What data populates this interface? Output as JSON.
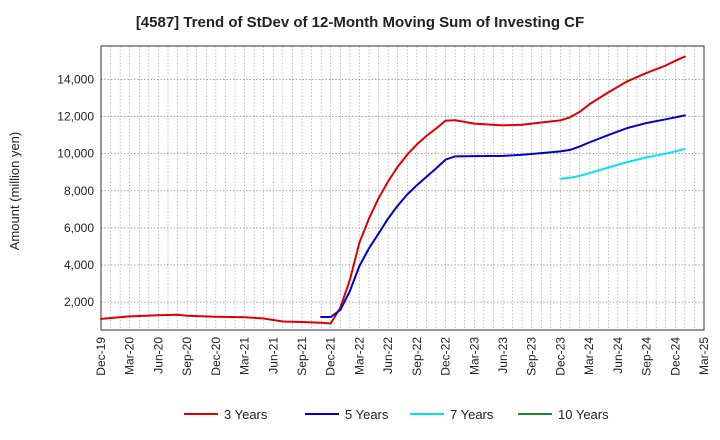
{
  "chart_data": {
    "type": "line",
    "title": "[4587]  Trend of StDev of 12-Month Moving Sum of Investing CF",
    "ylabel": "Amount (million yen)",
    "xlabel": "",
    "ylim": [
      500,
      15800
    ],
    "yticks": [
      2000,
      4000,
      6000,
      8000,
      10000,
      12000,
      14000
    ],
    "ytick_labels": [
      "2,000",
      "4,000",
      "6,000",
      "8,000",
      "10,000",
      "12,000",
      "14,000"
    ],
    "x_start": "Dec-19",
    "xtick_labels": [
      "Dec-19",
      "Mar-20",
      "Jun-20",
      "Sep-20",
      "Dec-20",
      "Mar-21",
      "Jun-21",
      "Sep-21",
      "Dec-21",
      "Mar-22",
      "Jun-22",
      "Sep-22",
      "Dec-22",
      "Mar-23",
      "Jun-23",
      "Sep-23",
      "Dec-23",
      "Mar-24",
      "Jun-24",
      "Sep-24",
      "Dec-24",
      "Mar-25"
    ],
    "grid": true,
    "legend_position": "bottom",
    "series": [
      {
        "name": "3 Years",
        "color": "#dd0000",
        "points": [
          [
            "Dec-19",
            1100
          ],
          [
            "Mar-20",
            1230
          ],
          [
            "Jun-20",
            1300
          ],
          [
            "Aug-20",
            1320
          ],
          [
            "Sep-20",
            1270
          ],
          [
            "Dec-20",
            1210
          ],
          [
            "Mar-21",
            1190
          ],
          [
            "May-21",
            1120
          ],
          [
            "Jul-21",
            960
          ],
          [
            "Sep-21",
            930
          ],
          [
            "Nov-21",
            890
          ],
          [
            "Dec-21",
            850
          ],
          [
            "Jan-22",
            1700
          ],
          [
            "Feb-22",
            3200
          ],
          [
            "Mar-22",
            5200
          ],
          [
            "Apr-22",
            6500
          ],
          [
            "May-22",
            7600
          ],
          [
            "Jun-22",
            8500
          ],
          [
            "Jul-22",
            9300
          ],
          [
            "Aug-22",
            9950
          ],
          [
            "Sep-22",
            10500
          ],
          [
            "Oct-22",
            10950
          ],
          [
            "Nov-22",
            11350
          ],
          [
            "Dec-22",
            11780
          ],
          [
            "Jan-23",
            11800
          ],
          [
            "Mar-23",
            11620
          ],
          [
            "Jun-23",
            11520
          ],
          [
            "Aug-23",
            11560
          ],
          [
            "Oct-23",
            11680
          ],
          [
            "Dec-23",
            11790
          ],
          [
            "Jan-24",
            11960
          ],
          [
            "Feb-24",
            12250
          ],
          [
            "Mar-24",
            12650
          ],
          [
            "May-24",
            13300
          ],
          [
            "Jul-24",
            13900
          ],
          [
            "Sep-24",
            14350
          ],
          [
            "Nov-24",
            14750
          ],
          [
            "Dec-24",
            15000
          ],
          [
            "Jan-25",
            15230
          ]
        ]
      },
      {
        "name": "5 Years",
        "color": "#0000cc",
        "points": [
          [
            "Nov-21",
            1200
          ],
          [
            "Dec-21",
            1200
          ],
          [
            "Jan-22",
            1580
          ],
          [
            "Feb-22",
            2600
          ],
          [
            "Mar-22",
            3950
          ],
          [
            "Apr-22",
            4900
          ],
          [
            "May-22",
            5700
          ],
          [
            "Jun-22",
            6500
          ],
          [
            "Jul-22",
            7200
          ],
          [
            "Aug-22",
            7800
          ],
          [
            "Sep-22",
            8300
          ],
          [
            "Oct-22",
            8750
          ],
          [
            "Nov-22",
            9200
          ],
          [
            "Dec-22",
            9680
          ],
          [
            "Jan-23",
            9850
          ],
          [
            "Mar-23",
            9870
          ],
          [
            "Jun-23",
            9880
          ],
          [
            "Aug-23",
            9940
          ],
          [
            "Oct-23",
            10030
          ],
          [
            "Dec-23",
            10120
          ],
          [
            "Jan-24",
            10200
          ],
          [
            "Feb-24",
            10380
          ],
          [
            "Mar-24",
            10600
          ],
          [
            "May-24",
            11000
          ],
          [
            "Jul-24",
            11380
          ],
          [
            "Sep-24",
            11650
          ],
          [
            "Nov-24",
            11850
          ],
          [
            "Jan-25",
            12060
          ]
        ]
      },
      {
        "name": "7 Years",
        "color": "#00e5ee",
        "points": [
          [
            "Dec-23",
            8650
          ],
          [
            "Jan-24",
            8700
          ],
          [
            "Feb-24",
            8800
          ],
          [
            "Mar-24",
            8950
          ],
          [
            "May-24",
            9250
          ],
          [
            "Jul-24",
            9550
          ],
          [
            "Sep-24",
            9800
          ],
          [
            "Nov-24",
            10000
          ],
          [
            "Jan-25",
            10250
          ]
        ]
      },
      {
        "name": "10 Years",
        "color": "#228822",
        "points": []
      }
    ]
  }
}
